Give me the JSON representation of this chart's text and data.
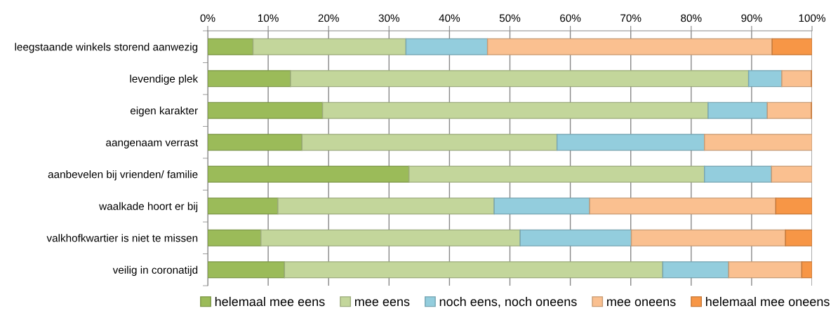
{
  "chart_data": {
    "type": "bar",
    "orientation": "horizontal",
    "stacked": true,
    "grid": "x",
    "legend": "bottom",
    "categories": [
      "leegstaande winkels storend aanwezig",
      "levendige plek",
      "eigen karakter",
      "aangenaam verrast",
      "aanbevelen bij vrienden/ familie",
      "waalkade hoort er bij",
      "valkhofkwartier is niet te missen",
      "veilig in coronatijd"
    ],
    "series": [
      {
        "name": "helemaal mee eens",
        "color": "#9bbb59",
        "values": [
          7.5,
          13.7,
          19.0,
          15.6,
          33.3,
          11.6,
          8.8,
          12.7
        ]
      },
      {
        "name": "mee eens",
        "color": "#c3d69b",
        "values": [
          25.3,
          75.8,
          63.8,
          42.2,
          48.9,
          35.8,
          42.9,
          62.6
        ]
      },
      {
        "name": "noch eens, noch oneens",
        "color": "#93cddd",
        "values": [
          13.5,
          5.5,
          9.8,
          24.4,
          11.1,
          15.8,
          18.4,
          10.9
        ]
      },
      {
        "name": "mee oneens",
        "color": "#fac090",
        "values": [
          47.1,
          4.9,
          7.3,
          17.8,
          6.7,
          30.8,
          25.5,
          12.1
        ]
      },
      {
        "name": "helemaal mee oneens",
        "color": "#f79646",
        "values": [
          6.6,
          0.1,
          0.1,
          0,
          0,
          6.0,
          4.4,
          1.7
        ]
      }
    ],
    "xlim": [
      0,
      100
    ],
    "xticks": [
      {
        "value": 0,
        "label": "0%"
      },
      {
        "value": 10,
        "label": "10%"
      },
      {
        "value": 20,
        "label": "20%"
      },
      {
        "value": 30,
        "label": "30%"
      },
      {
        "value": 40,
        "label": "40%"
      },
      {
        "value": 50,
        "label": "50%"
      },
      {
        "value": 60,
        "label": "60%"
      },
      {
        "value": 70,
        "label": "70%"
      },
      {
        "value": 80,
        "label": "80%"
      },
      {
        "value": 90,
        "label": "90%"
      },
      {
        "value": 100,
        "label": "100%"
      }
    ]
  }
}
